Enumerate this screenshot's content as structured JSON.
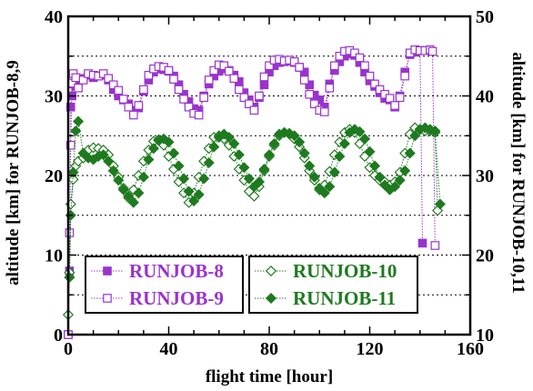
{
  "chart_data": {
    "type": "scatter",
    "xlabel": "flight time [hour]",
    "ylabel_left": "altitude [km]  for RUNJOB-8,9",
    "ylabel_right": "altitude [km] for RUNJOB-10,11",
    "xlim": [
      0,
      160
    ],
    "ylim_left": [
      0,
      40
    ],
    "ylim_right": [
      10,
      50
    ],
    "xticks": [
      "0",
      "40",
      "80",
      "120",
      "160"
    ],
    "yticks_left": [
      "0",
      "10",
      "20",
      "30",
      "40"
    ],
    "yticks_right": [
      "10",
      "20",
      "30",
      "40",
      "50"
    ],
    "grid": "dotted horizontal",
    "legend_placement": "bottom",
    "series": [
      {
        "name": "RUNJOB-8",
        "axis": "left",
        "color": "#9933cc",
        "marker": "square-filled",
        "x": [
          0,
          0.5,
          1,
          1.5,
          2,
          3,
          4,
          6,
          8,
          10,
          12,
          14,
          16,
          18,
          20,
          22,
          24,
          26,
          28,
          30,
          32,
          34,
          36,
          38,
          40,
          42,
          44,
          46,
          48,
          50,
          52,
          54,
          56,
          58,
          60,
          62,
          64,
          66,
          68,
          70,
          72,
          74,
          76,
          78,
          80,
          82,
          84,
          86,
          88,
          90,
          92,
          94,
          96,
          98,
          100,
          102,
          104,
          106,
          108,
          110,
          112,
          114,
          116,
          118,
          120,
          122,
          124,
          126,
          128,
          130,
          132,
          134,
          136,
          138,
          140,
          141
        ],
        "y": [
          0,
          8,
          28.6,
          30,
          31.5,
          31.2,
          31.8,
          32.2,
          32.6,
          32.3,
          32.5,
          32.6,
          32,
          30.8,
          30,
          29.5,
          29,
          28.2,
          28.5,
          30.6,
          32,
          33,
          33.4,
          33.3,
          33.1,
          32.5,
          31.4,
          30.2,
          29.3,
          28.4,
          28.2,
          30,
          31.5,
          32.5,
          33.1,
          33.4,
          33.2,
          32.6,
          31.8,
          30.4,
          29.5,
          28.6,
          29.8,
          31.4,
          33,
          33.8,
          34.2,
          34.3,
          34.4,
          34.2,
          33.6,
          33,
          31.4,
          30.1,
          29.5,
          28.6,
          31.5,
          33.2,
          34.3,
          35,
          35.3,
          35.1,
          34.2,
          33,
          31.9,
          31.2,
          30.4,
          29.7,
          29.5,
          28.6,
          30,
          33,
          35.2,
          35.5,
          35.7,
          11.5
        ]
      },
      {
        "name": "RUNJOB-9",
        "axis": "left",
        "color": "#9933cc",
        "marker": "square-open",
        "x": [
          0,
          0.5,
          1,
          1.5,
          2,
          3,
          4,
          6,
          8,
          10,
          12,
          14,
          16,
          18,
          20,
          22,
          24,
          26,
          28,
          30,
          32,
          34,
          36,
          38,
          40,
          42,
          44,
          46,
          48,
          50,
          52,
          54,
          56,
          58,
          60,
          62,
          64,
          66,
          68,
          70,
          72,
          74,
          76,
          78,
          80,
          82,
          84,
          86,
          88,
          90,
          92,
          94,
          96,
          98,
          100,
          102,
          104,
          106,
          108,
          110,
          112,
          114,
          116,
          118,
          120,
          122,
          124,
          126,
          128,
          130,
          132,
          134,
          136,
          138,
          140,
          142,
          144,
          145,
          146
        ],
        "y": [
          0,
          12.8,
          23.8,
          31.6,
          32.8,
          32.3,
          31,
          32,
          32.8,
          32.6,
          32.5,
          32.8,
          32.2,
          31.4,
          30.7,
          29.6,
          28.6,
          27.6,
          28.8,
          30.8,
          32.6,
          33.4,
          33.7,
          33.6,
          33.2,
          32.1,
          30.8,
          29.6,
          28.6,
          27.8,
          27.6,
          29.8,
          32,
          33.2,
          33.9,
          33.8,
          33.1,
          32.2,
          30.8,
          29.8,
          29,
          28.2,
          30,
          32.4,
          33.8,
          34.5,
          34.6,
          34.4,
          34.5,
          34.3,
          33.6,
          32,
          30.2,
          29,
          28.2,
          28,
          31,
          33.8,
          35,
          35.6,
          35.7,
          35.4,
          34.8,
          33.8,
          32.5,
          31.5,
          30.8,
          30.2,
          29.7,
          28.8,
          29.8,
          32.5,
          35.4,
          35.8,
          35.7,
          35.7,
          35.8,
          35.6,
          11.2
        ]
      },
      {
        "name": "RUNJOB-10",
        "axis": "right",
        "color": "#1e7a1e",
        "marker": "diamond-open",
        "x": [
          0,
          0.5,
          1,
          2,
          3,
          4,
          6,
          8,
          10,
          12,
          14,
          16,
          18,
          20,
          22,
          24,
          26,
          28,
          30,
          32,
          34,
          36,
          38,
          40,
          42,
          44,
          46,
          48,
          50,
          52,
          54,
          56,
          58,
          60,
          62,
          64,
          66,
          68,
          70,
          72,
          74,
          76,
          78,
          80,
          82,
          84,
          86,
          88,
          90,
          92,
          94,
          96,
          98,
          100,
          102,
          104,
          106,
          108,
          110,
          112,
          114,
          116,
          118,
          120,
          122,
          124,
          126,
          128,
          130,
          132,
          134,
          136,
          138,
          140,
          142,
          144,
          146,
          147
        ],
        "y": [
          12.5,
          17.8,
          26.4,
          29.5,
          31.2,
          31.8,
          32.2,
          33.2,
          33.5,
          33.4,
          33.2,
          32.6,
          31.2,
          29.8,
          28.4,
          27.2,
          28.2,
          30,
          31.8,
          33.2,
          34.3,
          34.5,
          33.8,
          32.4,
          30.8,
          29.2,
          27.8,
          26.6,
          27.8,
          29.8,
          31.8,
          33.4,
          34.8,
          35,
          34.6,
          33.8,
          32.4,
          30.8,
          29.4,
          28,
          27.4,
          28.6,
          30.6,
          32.4,
          33.8,
          35,
          35.4,
          35.2,
          34.6,
          33.6,
          32.2,
          30.6,
          29.4,
          28.2,
          28.8,
          30.5,
          32.6,
          34.2,
          35.4,
          35.8,
          35.4,
          34,
          32.4,
          31,
          30,
          29.4,
          29.2,
          28.8,
          29.2,
          30.4,
          32.8,
          35.2,
          36,
          35.8,
          35.6,
          35.6,
          35.4,
          25.6
        ]
      },
      {
        "name": "RUNJOB-11",
        "axis": "right",
        "color": "#1e7a1e",
        "marker": "diamond-filled",
        "x": [
          0.5,
          1,
          2,
          3,
          4,
          6,
          8,
          10,
          12,
          14,
          16,
          18,
          20,
          22,
          24,
          26,
          28,
          30,
          32,
          34,
          36,
          38,
          40,
          42,
          44,
          46,
          48,
          50,
          52,
          54,
          56,
          58,
          60,
          62,
          64,
          66,
          68,
          70,
          72,
          74,
          76,
          78,
          80,
          82,
          84,
          86,
          88,
          90,
          92,
          94,
          96,
          98,
          100,
          102,
          104,
          106,
          108,
          110,
          112,
          114,
          116,
          118,
          120,
          122,
          124,
          126,
          128,
          130,
          132,
          134,
          136,
          138,
          140,
          142,
          144,
          146,
          148
        ],
        "y": [
          17.2,
          25,
          30.4,
          35.6,
          36.8,
          32.8,
          32.2,
          32,
          32.4,
          32.6,
          31.8,
          30.6,
          29.4,
          28.2,
          27.4,
          26.6,
          27.8,
          29.8,
          32,
          33.4,
          34.4,
          34.6,
          34.2,
          32.8,
          31.2,
          29.6,
          28,
          26.8,
          27.6,
          29.6,
          31.6,
          33.6,
          34.8,
          35.2,
          34.8,
          34,
          32.6,
          31,
          29.6,
          28.6,
          29.2,
          30.8,
          32.6,
          34,
          35.2,
          35.4,
          35.3,
          35,
          34.2,
          32.8,
          31.2,
          29.8,
          28.4,
          27.8,
          28.6,
          30.4,
          32.4,
          34,
          35.4,
          35.8,
          35.5,
          34.6,
          33,
          31.2,
          29.8,
          28.8,
          28.2,
          28.6,
          29.4,
          30.6,
          32.8,
          35,
          35.8,
          36,
          35.8,
          35.6,
          26.4
        ]
      }
    ]
  }
}
